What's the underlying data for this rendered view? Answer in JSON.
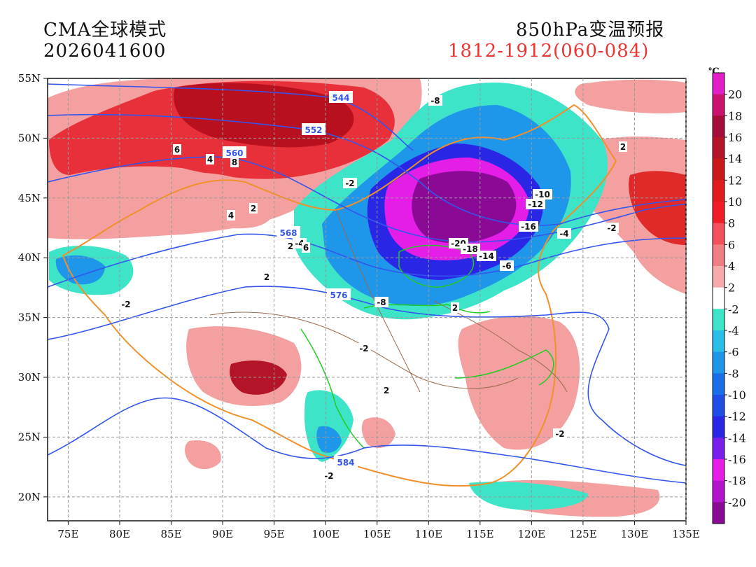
{
  "header": {
    "model": "CMA全球模式",
    "init_time": "2026041600",
    "product": "850hPa变温预报",
    "valid_window": "1812-1912(060-084)"
  },
  "map": {
    "lon_range": [
      73,
      135
    ],
    "lat_range": [
      18,
      55
    ],
    "lon_ticks": [
      "75E",
      "80E",
      "85E",
      "90E",
      "95E",
      "100E",
      "105E",
      "110E",
      "115E",
      "120E",
      "125E",
      "130E",
      "135E"
    ],
    "lat_ticks": [
      "55N",
      "50N",
      "45N",
      "40N",
      "35N",
      "30N",
      "25N",
      "20N"
    ],
    "gridlines": true,
    "gridline_style": "dashed grey"
  },
  "colorbar": {
    "unit": "℃",
    "tick_labels": [
      "20",
      "18",
      "16",
      "14",
      "12",
      "10",
      "8",
      "6",
      "4",
      "2",
      "-2",
      "-4",
      "-6",
      "-8",
      "-10",
      "-12",
      "-14",
      "-16",
      "-18",
      "-20"
    ],
    "colors": [
      "#e21ec8",
      "#c8146e",
      "#a50e3a",
      "#b41428",
      "#c81a1a",
      "#e01c1c",
      "#f01e24",
      "#f2505a",
      "#f07f84",
      "#f6aaaa",
      "#ffffff",
      "#3ee4c8",
      "#28bee8",
      "#1e96ea",
      "#1a6ee8",
      "#1e4ee6",
      "#2a26e6",
      "#7820ea",
      "#e41ee6",
      "#b412cc",
      "#8a0a96"
    ]
  },
  "height_contour_labels": [
    "544",
    "552",
    "560",
    "568",
    "576",
    "584"
  ],
  "contour_labels": [
    "-8",
    "6",
    "4",
    "8",
    "-2",
    "2",
    "-10",
    "-12",
    "-16",
    "-4",
    "-2",
    "-4",
    "6",
    "-20",
    "-18",
    "-14",
    "-6",
    "2",
    "-2",
    "-8",
    "2",
    "-2",
    "2",
    "2",
    "-2",
    "2",
    "2",
    "-2",
    "4"
  ],
  "colors": {
    "height_contour": "#3355ee",
    "province_border": "#9a6a4a",
    "country_border": "#f0902a",
    "river": "#22cc22",
    "window_text": "#ee3333"
  }
}
